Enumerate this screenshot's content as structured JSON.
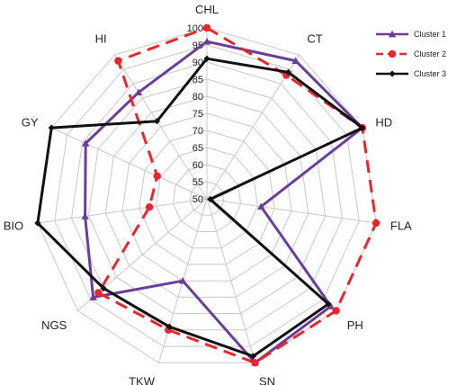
{
  "chart_data": {
    "type": "radar",
    "axes": [
      "CHL",
      "CT",
      "HD",
      "FLA",
      "PH",
      "SN",
      "TKW",
      "NGS",
      "BIO",
      "GY",
      "HI"
    ],
    "ticks": [
      50,
      55,
      60,
      65,
      70,
      75,
      80,
      85,
      90,
      95,
      100
    ],
    "range": [
      50,
      100
    ],
    "grid": true,
    "legend_position": "top-right",
    "series": [
      {
        "name": "Cluster 1",
        "color": "#6a3d9a",
        "marker": "triangle",
        "dash": "solid",
        "values": [
          96,
          98,
          100,
          66,
          98,
          100,
          75,
          94,
          86,
          89,
          87
        ]
      },
      {
        "name": "Cluster 2",
        "color": "#e8262b",
        "marker": "circle",
        "dash": "dashed",
        "values": [
          100,
          93,
          100,
          100,
          100,
          100,
          90,
          92,
          67,
          66,
          98
        ]
      },
      {
        "name": "Cluster 3",
        "color": "#111111",
        "marker": "diamond",
        "dash": "solid",
        "values": [
          91,
          94,
          100,
          51,
          97,
          98,
          89,
          90,
          100,
          100,
          77
        ]
      }
    ]
  }
}
